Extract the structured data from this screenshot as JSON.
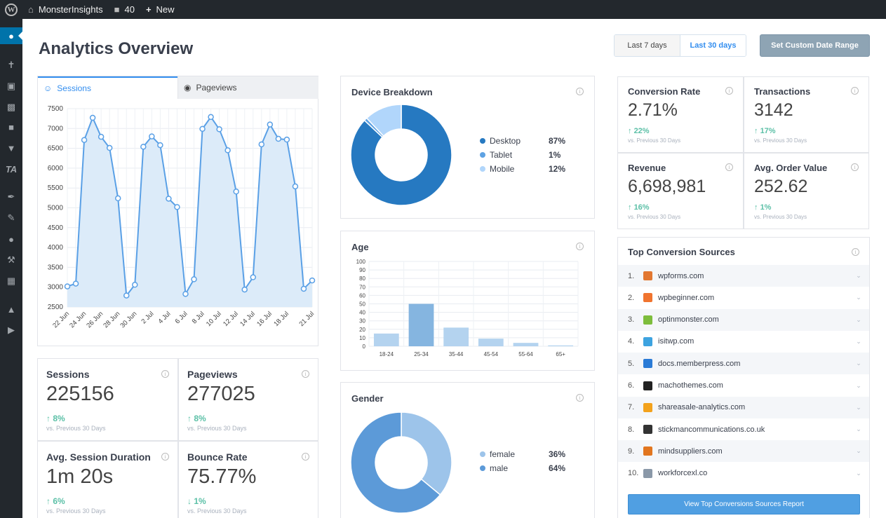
{
  "adminbar": {
    "site_name": "MonsterInsights",
    "comments_count": "40",
    "new_label": "New"
  },
  "page": {
    "title": "Analytics Overview"
  },
  "date_range": {
    "last7": "Last 7 days",
    "last30": "Last 30 days",
    "selected": "Last 30 days",
    "custom": "Set Custom Date Range"
  },
  "sessions_chart": {
    "tabs": {
      "sessions": "Sessions",
      "pageviews": "Pageviews"
    },
    "active_tab": "Sessions",
    "accent": "#338eef"
  },
  "chart_data": [
    {
      "type": "area",
      "x": [
        "22 Jun",
        "23 Jun",
        "24 Jun",
        "25 Jun",
        "26 Jun",
        "27 Jun",
        "28 Jun",
        "29 Jun",
        "30 Jun",
        "1 Jul",
        "2 Jul",
        "3 Jul",
        "4 Jul",
        "5 Jul",
        "6 Jul",
        "7 Jul",
        "8 Jul",
        "9 Jul",
        "10 Jul",
        "11 Jul",
        "12 Jul",
        "13 Jul",
        "14 Jul",
        "15 Jul",
        "16 Jul",
        "17 Jul",
        "18 Jul",
        "19 Jul",
        "20 Jul",
        "21 Jul"
      ],
      "xtick_labels": [
        "22 Jun",
        "24 Jun",
        "26 Jun",
        "28 Jun",
        "30 Jun",
        "2 Jul",
        "4 Jul",
        "6 Jul",
        "8 Jul",
        "10 Jul",
        "12 Jul",
        "14 Jul",
        "16 Jul",
        "18 Jul",
        "21 Jul"
      ],
      "xtick_indices": [
        0,
        2,
        4,
        6,
        8,
        10,
        12,
        14,
        16,
        18,
        20,
        22,
        24,
        26,
        29
      ],
      "series": [
        {
          "values": [
            3020,
            3090,
            6710,
            7270,
            6790,
            6510,
            5240,
            2790,
            3060,
            6540,
            6800,
            6580,
            5230,
            5020,
            2830,
            3200,
            6990,
            7290,
            6980,
            6450,
            5410,
            2940,
            3250,
            6600,
            7100,
            6740,
            6720,
            5540,
            2960,
            3170
          ]
        }
      ],
      "ylim": [
        2500,
        7500
      ],
      "yticks": [
        2500,
        3000,
        3500,
        4000,
        4500,
        5000,
        5500,
        6000,
        6500,
        7000,
        7500
      ],
      "grid": true
    },
    {
      "type": "pie",
      "title": "Device Breakdown",
      "categories": [
        "Desktop",
        "Tablet",
        "Mobile"
      ],
      "values": [
        87,
        1,
        12
      ],
      "labels": [
        "87%",
        "1%",
        "12%"
      ],
      "colors": [
        "#2679c1",
        "#5ea2e3",
        "#b1d6fb"
      ]
    },
    {
      "type": "bar",
      "title": "Age",
      "categories": [
        "18-24",
        "25-34",
        "35-44",
        "45-54",
        "55-64",
        "65+"
      ],
      "values": [
        15,
        50,
        22,
        9,
        4,
        1
      ],
      "ylim": [
        0,
        100
      ],
      "yticks": [
        0,
        10,
        20,
        30,
        40,
        50,
        60,
        70,
        80,
        90,
        100
      ],
      "grid": true,
      "colors": [
        "#b4d3ef",
        "#85b5e0",
        "#b4d3ef",
        "#b4d3ef",
        "#b4d3ef",
        "#b4d3ef"
      ]
    },
    {
      "type": "pie",
      "title": "Gender",
      "categories": [
        "female",
        "male"
      ],
      "values": [
        36,
        64
      ],
      "labels": [
        "36%",
        "64%"
      ],
      "colors": [
        "#9dc4ea",
        "#5c9ad8"
      ]
    }
  ],
  "stats": {
    "sessions": {
      "label": "Sessions",
      "value": "225156",
      "change": "8%",
      "compare": "vs. Previous 30 Days"
    },
    "pageviews": {
      "label": "Pageviews",
      "value": "277025",
      "change": "8%",
      "compare": "vs. Previous 30 Days"
    },
    "duration": {
      "label": "Avg. Session Duration",
      "value": "1m 20s",
      "change": "6%",
      "compare": "vs. Previous 30 Days"
    },
    "bounce": {
      "label": "Bounce Rate",
      "value": "75.77%",
      "change": "1%",
      "compare": "vs. Previous 30 Days"
    }
  },
  "ecommerce": {
    "conversion_rate": {
      "label": "Conversion Rate",
      "value": "2.71%",
      "change": "22%",
      "compare": "vs. Previous 30 Days"
    },
    "transactions": {
      "label": "Transactions",
      "value": "3142",
      "change": "17%",
      "compare": "vs. Previous 30 Days"
    },
    "revenue": {
      "label": "Revenue",
      "value": "6,698,981",
      "change": "16%",
      "compare": "vs. Previous 30 Days"
    },
    "aov": {
      "label": "Avg. Order Value",
      "value": "252.62",
      "change": "1%",
      "compare": "vs. Previous 30 Days"
    }
  },
  "conversion_sources": {
    "title": "Top Conversion Sources",
    "items": [
      {
        "num": "1.",
        "domain": "wpforms.com",
        "icon": "bear-icon",
        "color": "#e27730"
      },
      {
        "num": "2.",
        "domain": "wpbeginner.com",
        "icon": "wpbeginner-icon",
        "color": "#f0742f"
      },
      {
        "num": "3.",
        "domain": "optinmonster.com",
        "icon": "monster-icon",
        "color": "#7dbd3c"
      },
      {
        "num": "4.",
        "domain": "isitwp.com",
        "icon": "isitwp-icon",
        "color": "#3da3e0"
      },
      {
        "num": "5.",
        "domain": "docs.memberpress.com",
        "icon": "memberpress-icon",
        "color": "#2a7bd6"
      },
      {
        "num": "6.",
        "domain": "machothemes.com",
        "icon": "machothemes-icon",
        "color": "#222222"
      },
      {
        "num": "7.",
        "domain": "shareasale-analytics.com",
        "icon": "star-icon",
        "color": "#f3a21c"
      },
      {
        "num": "8.",
        "domain": "stickmancommunications.co.uk",
        "icon": "stickman-icon",
        "color": "#333333"
      },
      {
        "num": "9.",
        "domain": "mindsuppliers.com",
        "icon": "mind-icon",
        "color": "#e2761f"
      },
      {
        "num": "10.",
        "domain": "workforcexl.co",
        "icon": "globe-icon",
        "color": "#8a98a8"
      }
    ],
    "button": "View Top Conversions Sources Report"
  }
}
